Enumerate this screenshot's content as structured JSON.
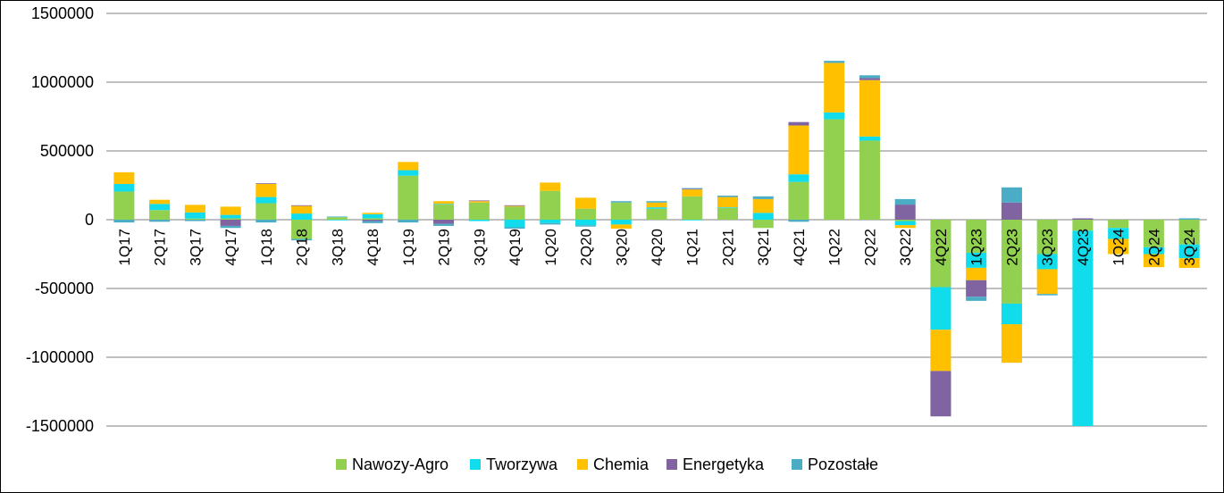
{
  "chart_data": {
    "type": "bar",
    "stacked": true,
    "title": "",
    "xlabel": "",
    "ylabel": "",
    "ylim": [
      -1500000,
      1500000
    ],
    "yticks": [
      1500000,
      1000000,
      500000,
      0,
      -500000,
      -1000000,
      -1500000
    ],
    "ytick_labels": [
      "1500000",
      "1000000",
      "500000",
      "0",
      "-500000",
      "-1000000",
      "-1500000"
    ],
    "grid": true,
    "legend_position": "bottom",
    "categories": [
      "1Q17",
      "2Q17",
      "3Q17",
      "4Q17",
      "1Q18",
      "2Q18",
      "3Q18",
      "4Q18",
      "1Q19",
      "2Q19",
      "3Q19",
      "4Q19",
      "1Q20",
      "2Q20",
      "3Q20",
      "4Q20",
      "1Q21",
      "2Q21",
      "3Q21",
      "4Q21",
      "1Q22",
      "2Q22",
      "3Q22",
      "4Q22",
      "1Q23",
      "2Q23",
      "3Q23",
      "4Q23",
      "1Q24",
      "2Q24",
      "3Q24"
    ],
    "series": [
      {
        "name": "Nawozy-Agro",
        "color": "#92D050",
        "values": [
          205000,
          70000,
          8000,
          10000,
          120000,
          -140000,
          18000,
          10000,
          320000,
          110000,
          125000,
          95000,
          210000,
          80000,
          125000,
          80000,
          170000,
          85000,
          -60000,
          275000,
          730000,
          575000,
          -10000,
          -490000,
          -240000,
          -610000,
          -250000,
          -80000,
          -60000,
          -200000,
          -180000
        ]
      },
      {
        "name": "Tworzywa",
        "color": "#11DCEB",
        "values": [
          55000,
          45000,
          45000,
          25000,
          45000,
          45000,
          -5000,
          30000,
          40000,
          5000,
          -10000,
          -55000,
          -25000,
          -40000,
          -35000,
          10000,
          -5000,
          5000,
          50000,
          55000,
          50000,
          30000,
          -30000,
          -310000,
          -110000,
          -150000,
          -110000,
          -1420000,
          -80000,
          -50000,
          -100000
        ]
      },
      {
        "name": "Chemia",
        "color": "#FFC000",
        "values": [
          85000,
          30000,
          55000,
          60000,
          95000,
          55000,
          0,
          10000,
          60000,
          20000,
          10000,
          5000,
          60000,
          80000,
          -30000,
          35000,
          50000,
          75000,
          100000,
          355000,
          360000,
          410000,
          -20000,
          -300000,
          -90000,
          -280000,
          -180000,
          0,
          -110000,
          -95000,
          -70000
        ]
      },
      {
        "name": "Energetyka",
        "color": "#8064A2",
        "values": [
          0,
          0,
          0,
          -45000,
          5000,
          5000,
          0,
          -10000,
          0,
          -30000,
          5000,
          5000,
          0,
          0,
          0,
          0,
          5000,
          0,
          0,
          25000,
          0,
          15000,
          110000,
          -330000,
          -120000,
          125000,
          0,
          10000,
          0,
          0,
          0
        ]
      },
      {
        "name": "Pozostałe",
        "color": "#4BACC6",
        "values": [
          -20000,
          -15000,
          -10000,
          -15000,
          -20000,
          -10000,
          5000,
          -15000,
          -20000,
          -15000,
          0,
          -10000,
          -10000,
          -10000,
          10000,
          10000,
          5000,
          10000,
          20000,
          -15000,
          15000,
          20000,
          40000,
          0,
          -30000,
          110000,
          -10000,
          0,
          0,
          0,
          10000
        ]
      }
    ]
  }
}
